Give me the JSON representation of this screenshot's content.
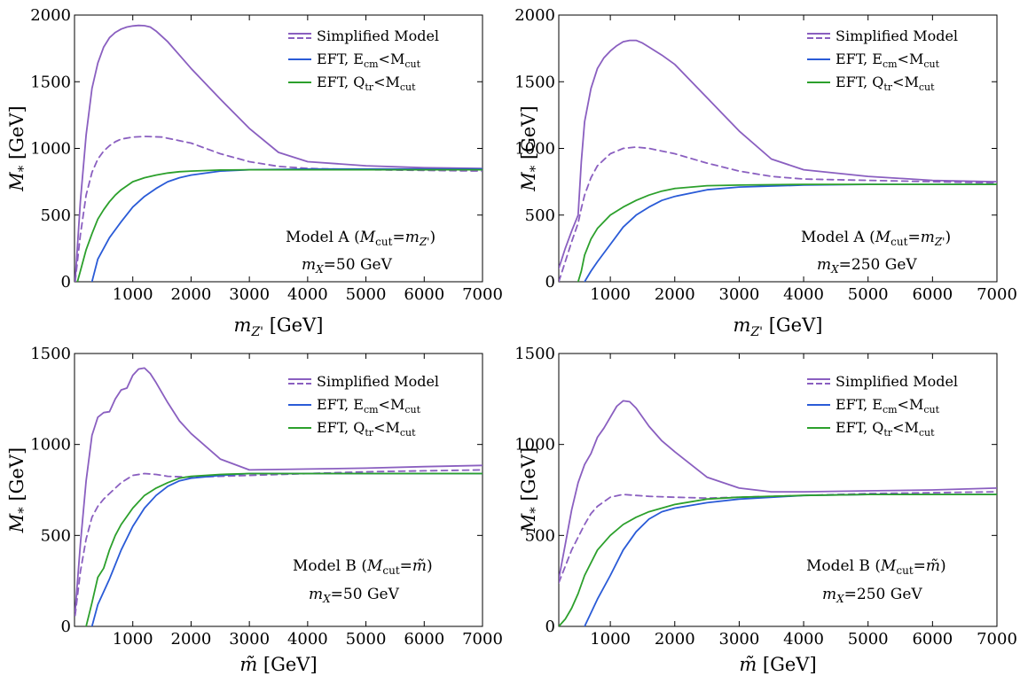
{
  "colors": {
    "simplified": "#8a5fc0",
    "eft_ecm": "#2a5bd7",
    "eft_qtr": "#2ca02c"
  },
  "legend_entries": [
    {
      "key": "simplified",
      "main": "Simplified Model",
      "sub": "",
      "tail": ""
    },
    {
      "key": "eft_ecm",
      "main": "EFT, E",
      "sub": "cm",
      "tail": "<M",
      "sub2": "cut"
    },
    {
      "key": "eft_qtr",
      "main": "EFT, Q",
      "sub": "tr",
      "tail": "<M",
      "sub2": "cut"
    }
  ],
  "chart_data": [
    {
      "id": "top-left",
      "type": "line",
      "xlabel": "m_Z' [GeV]",
      "xlabel_parts": {
        "main": "m",
        "sub": "Z'",
        "rest": " [GeV]"
      },
      "ylabel": "M_* [GeV]",
      "xlim": [
        0,
        7000
      ],
      "ylim": [
        0,
        2000
      ],
      "xticks": [
        1000,
        2000,
        3000,
        4000,
        5000,
        6000,
        7000
      ],
      "yticks": [
        0,
        500,
        1000,
        1500,
        2000
      ],
      "annotation": {
        "line1_pre": "Model A (",
        "line1_sym": "M",
        "line1_sub": "cut",
        "line1_eq": "=m",
        "line1_sub2": "Z'",
        "line1_post": ")",
        "line2_sym": "m",
        "line2_sub": "X",
        "line2_rest": "=50 GeV"
      },
      "series": [
        {
          "key": "simplified",
          "style": "solid",
          "x": [
            10,
            100,
            200,
            300,
            400,
            500,
            600,
            700,
            800,
            900,
            1000,
            1100,
            1200,
            1300,
            1400,
            1600,
            1800,
            2000,
            2500,
            3000,
            3500,
            4000,
            5000,
            6000,
            7000
          ],
          "y": [
            0,
            600,
            1100,
            1450,
            1640,
            1760,
            1830,
            1870,
            1895,
            1910,
            1918,
            1922,
            1920,
            1910,
            1880,
            1800,
            1700,
            1600,
            1370,
            1150,
            970,
            900,
            870,
            855,
            850
          ]
        },
        {
          "key": "simplified",
          "style": "dashed",
          "x": [
            10,
            100,
            200,
            300,
            400,
            500,
            600,
            700,
            800,
            1000,
            1200,
            1500,
            2000,
            2500,
            3000,
            3500,
            4000,
            5000,
            6000,
            7000
          ],
          "y": [
            0,
            350,
            650,
            820,
            920,
            980,
            1020,
            1050,
            1070,
            1085,
            1090,
            1085,
            1040,
            960,
            900,
            865,
            850,
            840,
            835,
            830
          ]
        },
        {
          "key": "eft_ecm",
          "style": "solid",
          "x": [
            300,
            400,
            600,
            800,
            1000,
            1200,
            1400,
            1600,
            1800,
            2000,
            2500,
            3000,
            4000,
            5000,
            6000,
            7000
          ],
          "y": [
            0,
            170,
            330,
            450,
            560,
            640,
            700,
            750,
            780,
            800,
            830,
            840,
            845,
            845,
            845,
            845
          ]
        },
        {
          "key": "eft_qtr",
          "style": "solid",
          "x": [
            50,
            100,
            200,
            300,
            400,
            500,
            600,
            700,
            800,
            1000,
            1200,
            1400,
            1600,
            1800,
            2000,
            2500,
            3000,
            4000,
            5000,
            6000,
            7000
          ],
          "y": [
            0,
            80,
            240,
            360,
            470,
            540,
            600,
            650,
            690,
            750,
            780,
            800,
            815,
            825,
            830,
            838,
            840,
            840,
            840,
            840,
            840
          ]
        }
      ]
    },
    {
      "id": "top-right",
      "type": "line",
      "xlabel": "m_Z' [GeV]",
      "xlabel_parts": {
        "main": "m",
        "sub": "Z'",
        "rest": " [GeV]"
      },
      "ylabel": "M_* [GeV]",
      "xlim": [
        200,
        7000
      ],
      "ylim": [
        0,
        2000
      ],
      "xticks": [
        1000,
        2000,
        3000,
        4000,
        5000,
        6000,
        7000
      ],
      "yticks": [
        0,
        500,
        1000,
        1500,
        2000
      ],
      "annotation": {
        "line1_pre": "Model A (",
        "line1_sym": "M",
        "line1_sub": "cut",
        "line1_eq": "=m",
        "line1_sub2": "Z'",
        "line1_post": ")",
        "line2_sym": "m",
        "line2_sub": "X",
        "line2_rest": "=250 GeV"
      },
      "series": [
        {
          "key": "simplified",
          "style": "solid",
          "x": [
            200,
            300,
            400,
            500,
            550,
            600,
            700,
            800,
            900,
            1000,
            1100,
            1200,
            1300,
            1400,
            1500,
            1600,
            1800,
            2000,
            2500,
            3000,
            3500,
            4000,
            5000,
            6000,
            7000
          ],
          "y": [
            100,
            250,
            380,
            500,
            900,
            1200,
            1450,
            1600,
            1680,
            1730,
            1770,
            1800,
            1810,
            1810,
            1790,
            1760,
            1700,
            1630,
            1380,
            1130,
            920,
            840,
            790,
            760,
            750
          ]
        },
        {
          "key": "simplified",
          "style": "dashed",
          "x": [
            200,
            300,
            400,
            500,
            550,
            600,
            700,
            800,
            1000,
            1200,
            1400,
            1600,
            2000,
            2500,
            3000,
            3500,
            4000,
            5000,
            6000,
            7000
          ],
          "y": [
            0,
            150,
            300,
            440,
            550,
            650,
            780,
            870,
            960,
            1000,
            1010,
            1000,
            960,
            890,
            830,
            790,
            770,
            760,
            750,
            740
          ]
        },
        {
          "key": "eft_ecm",
          "style": "solid",
          "x": [
            600,
            700,
            800,
            1000,
            1200,
            1400,
            1600,
            1800,
            2000,
            2500,
            3000,
            4000,
            5000,
            6000,
            7000
          ],
          "y": [
            0,
            80,
            150,
            280,
            410,
            500,
            560,
            610,
            640,
            690,
            710,
            725,
            730,
            730,
            730
          ]
        },
        {
          "key": "eft_qtr",
          "style": "solid",
          "x": [
            500,
            550,
            600,
            700,
            800,
            1000,
            1200,
            1400,
            1600,
            1800,
            2000,
            2500,
            3000,
            4000,
            5000,
            6000,
            7000
          ],
          "y": [
            0,
            80,
            200,
            320,
            400,
            500,
            560,
            610,
            650,
            680,
            700,
            720,
            725,
            730,
            730,
            730,
            730
          ]
        }
      ]
    },
    {
      "id": "bottom-left",
      "type": "line",
      "xlabel": "m̃ [GeV]",
      "xlabel_parts": {
        "main": "m̃",
        "sub": "",
        "rest": " [GeV]"
      },
      "ylabel": "M_* [GeV]",
      "xlim": [
        0,
        7000
      ],
      "ylim": [
        0,
        1500
      ],
      "xticks": [
        1000,
        2000,
        3000,
        4000,
        5000,
        6000,
        7000
      ],
      "yticks": [
        0,
        500,
        1000,
        1500
      ],
      "annotation": {
        "line1_pre": "Model B (",
        "line1_sym": "M",
        "line1_sub": "cut",
        "line1_eq": "=m̃",
        "line1_sub2": "",
        "line1_post": ")",
        "line2_sym": "m",
        "line2_sub": "X",
        "line2_rest": "=50 GeV"
      },
      "series": [
        {
          "key": "simplified",
          "style": "solid",
          "x": [
            10,
            100,
            200,
            300,
            400,
            500,
            600,
            700,
            800,
            900,
            1000,
            1100,
            1200,
            1300,
            1400,
            1600,
            1800,
            2000,
            2500,
            3000,
            4000,
            5000,
            6000,
            7000
          ],
          "y": [
            80,
            450,
            800,
            1050,
            1150,
            1175,
            1180,
            1250,
            1300,
            1310,
            1380,
            1415,
            1420,
            1390,
            1340,
            1230,
            1130,
            1060,
            920,
            860,
            865,
            870,
            878,
            885
          ]
        },
        {
          "key": "simplified",
          "style": "dashed",
          "x": [
            10,
            100,
            200,
            300,
            400,
            500,
            600,
            700,
            800,
            1000,
            1200,
            1400,
            1600,
            2000,
            2500,
            3000,
            4000,
            5000,
            6000,
            7000
          ],
          "y": [
            60,
            300,
            480,
            600,
            660,
            700,
            730,
            760,
            790,
            830,
            840,
            835,
            825,
            820,
            825,
            830,
            840,
            850,
            855,
            860
          ]
        },
        {
          "key": "eft_ecm",
          "style": "solid",
          "x": [
            300,
            400,
            600,
            800,
            1000,
            1200,
            1400,
            1600,
            1800,
            2000,
            2500,
            3000,
            4000,
            5000,
            6000,
            7000
          ],
          "y": [
            0,
            120,
            260,
            420,
            550,
            650,
            720,
            770,
            800,
            815,
            830,
            840,
            840,
            840,
            840,
            840
          ]
        },
        {
          "key": "eft_qtr",
          "style": "solid",
          "x": [
            200,
            300,
            400,
            500,
            600,
            700,
            800,
            1000,
            1200,
            1400,
            1600,
            1800,
            2000,
            2500,
            3000,
            4000,
            5000,
            6000,
            7000
          ],
          "y": [
            0,
            130,
            270,
            320,
            420,
            500,
            560,
            650,
            720,
            760,
            790,
            815,
            825,
            835,
            840,
            840,
            840,
            840,
            840
          ]
        }
      ]
    },
    {
      "id": "bottom-right",
      "type": "line",
      "xlabel": "m̃ [GeV]",
      "xlabel_parts": {
        "main": "m̃",
        "sub": "",
        "rest": " [GeV]"
      },
      "ylabel": "M_* [GeV]",
      "xlim": [
        200,
        7000
      ],
      "ylim": [
        0,
        1500
      ],
      "xticks": [
        1000,
        2000,
        3000,
        4000,
        5000,
        6000,
        7000
      ],
      "yticks": [
        0,
        500,
        1000,
        1500
      ],
      "annotation": {
        "line1_pre": "Model B (",
        "line1_sym": "M",
        "line1_sub": "cut",
        "line1_eq": "=m̃",
        "line1_sub2": "",
        "line1_post": ")",
        "line2_sym": "m",
        "line2_sub": "X",
        "line2_rest": "=250 GeV"
      },
      "series": [
        {
          "key": "simplified",
          "style": "solid",
          "x": [
            200,
            300,
            400,
            500,
            600,
            700,
            800,
            900,
            1000,
            1100,
            1200,
            1300,
            1400,
            1600,
            1800,
            2000,
            2500,
            3000,
            3500,
            4000,
            5000,
            6000,
            7000
          ],
          "y": [
            260,
            450,
            640,
            790,
            890,
            950,
            1040,
            1090,
            1150,
            1210,
            1240,
            1235,
            1200,
            1100,
            1020,
            960,
            820,
            760,
            740,
            740,
            745,
            750,
            760
          ]
        },
        {
          "key": "simplified",
          "style": "dashed",
          "x": [
            200,
            300,
            400,
            500,
            600,
            700,
            800,
            1000,
            1200,
            1400,
            1600,
            2000,
            2500,
            3000,
            4000,
            5000,
            6000,
            7000
          ],
          "y": [
            240,
            330,
            420,
            490,
            560,
            620,
            660,
            710,
            725,
            720,
            715,
            710,
            705,
            710,
            720,
            730,
            735,
            740
          ]
        },
        {
          "key": "eft_ecm",
          "style": "solid",
          "x": [
            600,
            800,
            1000,
            1200,
            1400,
            1600,
            1800,
            2000,
            2500,
            3000,
            4000,
            5000,
            6000,
            7000
          ],
          "y": [
            0,
            150,
            280,
            420,
            520,
            590,
            630,
            650,
            680,
            700,
            720,
            725,
            725,
            725
          ]
        },
        {
          "key": "eft_qtr",
          "style": "solid",
          "x": [
            200,
            300,
            400,
            500,
            600,
            800,
            1000,
            1200,
            1400,
            1600,
            1800,
            2000,
            2500,
            3000,
            4000,
            5000,
            6000,
            7000
          ],
          "y": [
            0,
            40,
            100,
            180,
            280,
            420,
            500,
            560,
            600,
            630,
            650,
            670,
            700,
            710,
            720,
            725,
            725,
            725
          ]
        }
      ]
    }
  ]
}
